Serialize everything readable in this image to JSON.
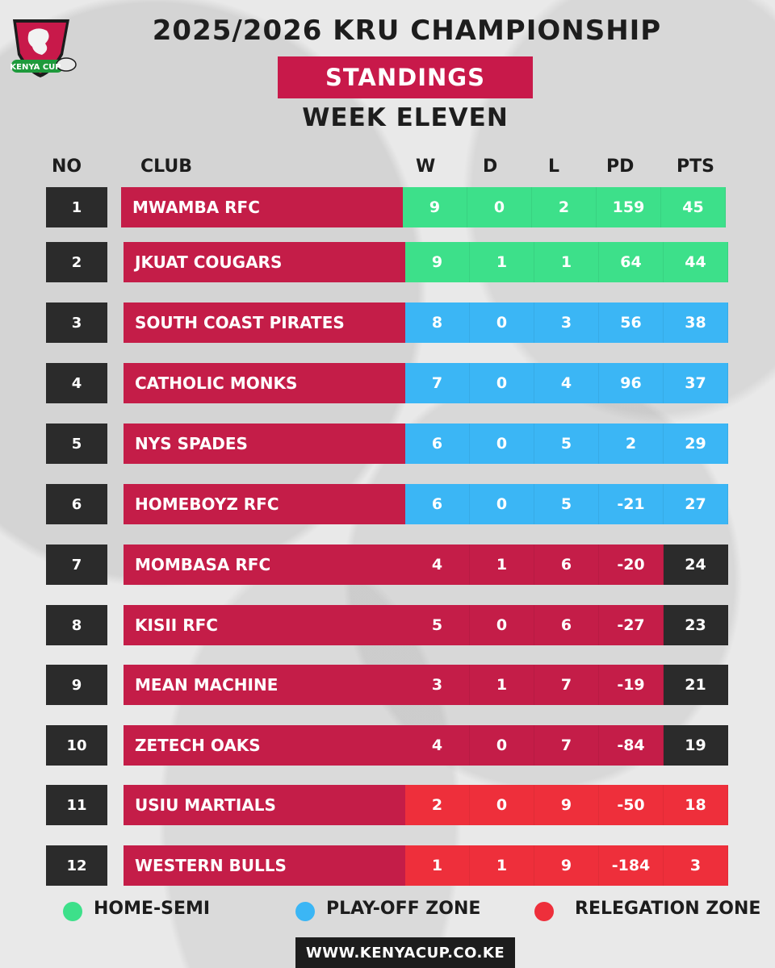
{
  "header": {
    "title": "2025/2026 KRU CHAMPIONSHIP",
    "badge": "STANDINGS",
    "week": "WEEK ELEVEN",
    "logo_text": "KENYA CUP"
  },
  "columns": {
    "no": "NO",
    "club": "CLUB",
    "w": "W",
    "d": "D",
    "l": "L",
    "pd": "PD",
    "pts": "PTS"
  },
  "colors": {
    "home_semi": "#3de08a",
    "play_off": "#3bb6f5",
    "relegation": "#ee2f3b",
    "club": "#c41d48",
    "dark": "#2b2b2b"
  },
  "table": [
    {
      "no": "1",
      "club": "MWAMBA RFC",
      "w": "9",
      "d": "0",
      "l": "2",
      "pd": "159",
      "pts": "45",
      "zone": "home_semi"
    },
    {
      "no": "2",
      "club": "JKUAT COUGARS",
      "w": "9",
      "d": "1",
      "l": "1",
      "pd": "64",
      "pts": "44",
      "zone": "home_semi"
    },
    {
      "no": "3",
      "club": "SOUTH COAST PIRATES",
      "w": "8",
      "d": "0",
      "l": "3",
      "pd": "56",
      "pts": "38",
      "zone": "play_off"
    },
    {
      "no": "4",
      "club": "CATHOLIC MONKS",
      "w": "7",
      "d": "0",
      "l": "4",
      "pd": "96",
      "pts": "37",
      "zone": "play_off"
    },
    {
      "no": "5",
      "club": "NYS SPADES",
      "w": "6",
      "d": "0",
      "l": "5",
      "pd": "2",
      "pts": "29",
      "zone": "play_off"
    },
    {
      "no": "6",
      "club": "HOMEBOYZ RFC",
      "w": "6",
      "d": "0",
      "l": "5",
      "pd": "-21",
      "pts": "27",
      "zone": "play_off"
    },
    {
      "no": "7",
      "club": "MOMBASA RFC",
      "w": "4",
      "d": "1",
      "l": "6",
      "pd": "-20",
      "pts": "24",
      "zone": "safe"
    },
    {
      "no": "8",
      "club": "KISII RFC",
      "w": "5",
      "d": "0",
      "l": "6",
      "pd": "-27",
      "pts": "23",
      "zone": "safe"
    },
    {
      "no": "9",
      "club": "MEAN MACHINE",
      "w": "3",
      "d": "1",
      "l": "7",
      "pd": "-19",
      "pts": "21",
      "zone": "safe"
    },
    {
      "no": "10",
      "club": "ZETECH OAKS",
      "w": "4",
      "d": "0",
      "l": "7",
      "pd": "-84",
      "pts": "19",
      "zone": "safe"
    },
    {
      "no": "11",
      "club": "USIU MARTIALS",
      "w": "2",
      "d": "0",
      "l": "9",
      "pd": "-50",
      "pts": "18",
      "zone": "relegation"
    },
    {
      "no": "12",
      "club": "WESTERN BULLS",
      "w": "1",
      "d": "1",
      "l": "9",
      "pd": "-184",
      "pts": "3",
      "zone": "relegation"
    }
  ],
  "legend": {
    "home_semi": "HOME-SEMI",
    "play_off": "PLAY-OFF ZONE",
    "relegation": "RELEGATION ZONE"
  },
  "footer": {
    "url": "WWW.KENYACUP.CO.KE"
  }
}
